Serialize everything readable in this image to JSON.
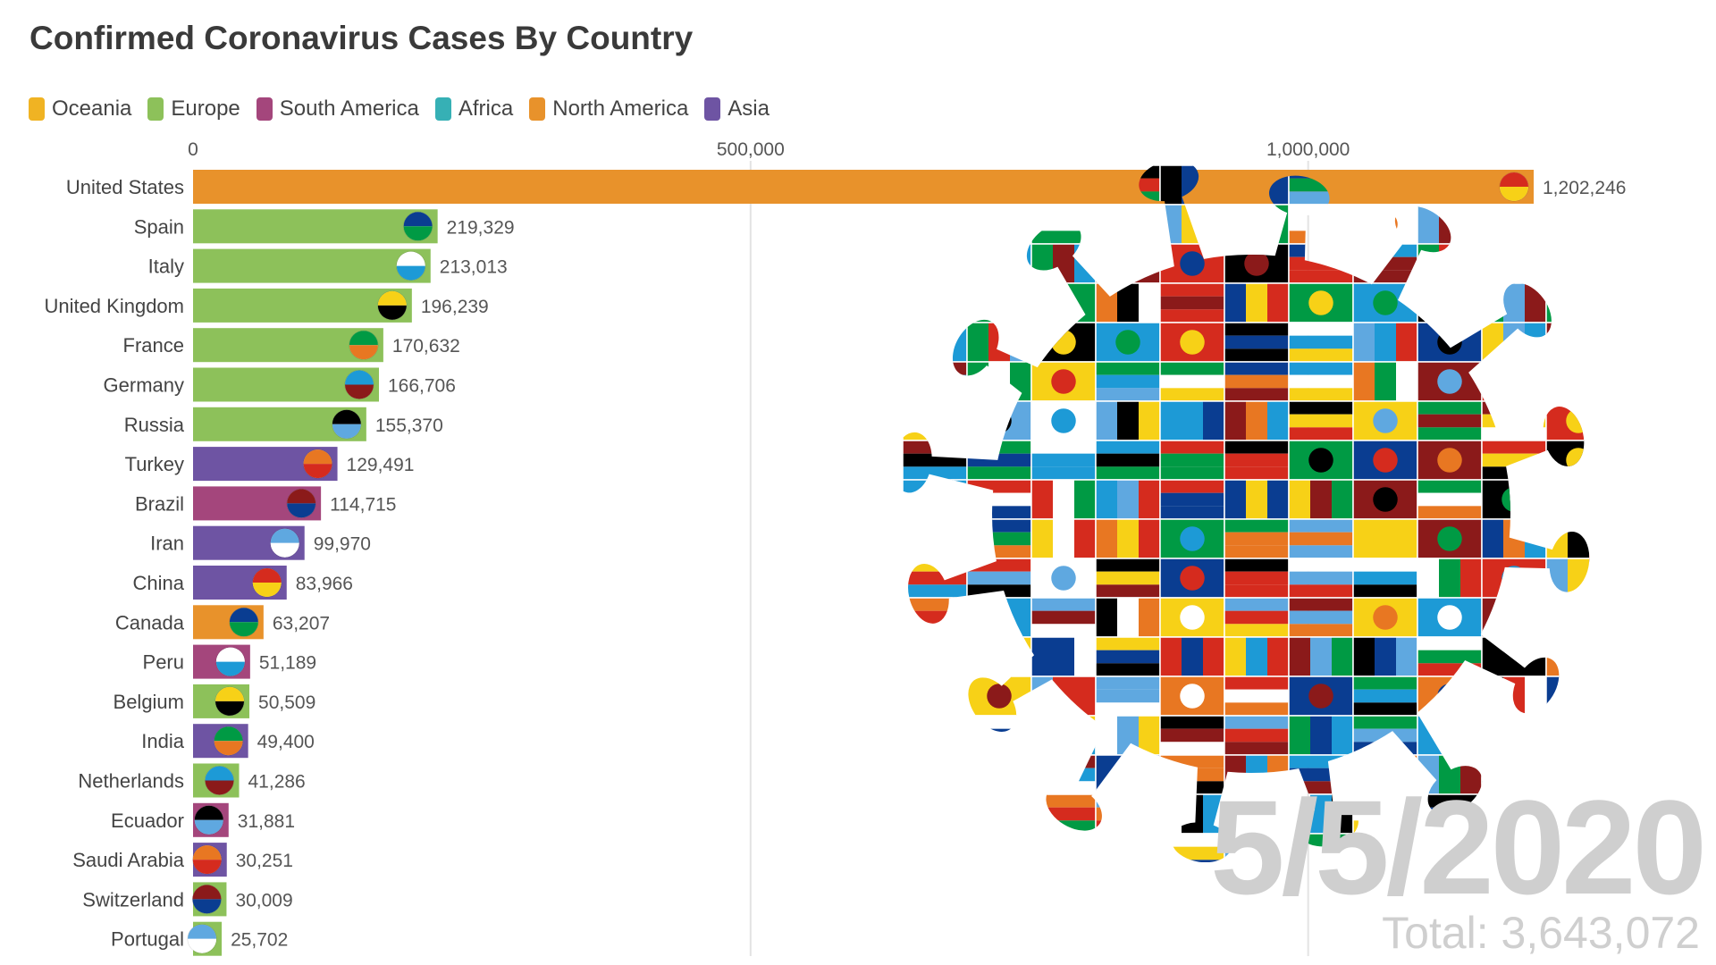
{
  "chart_data": {
    "type": "bar",
    "orientation": "horizontal",
    "title": "Confirmed Coronavirus Cases By Country",
    "legend": [
      {
        "name": "Oceania",
        "color": "#f0b323"
      },
      {
        "name": "Europe",
        "color": "#8dc15a"
      },
      {
        "name": "South America",
        "color": "#a4467c"
      },
      {
        "name": "Africa",
        "color": "#36b0b5"
      },
      {
        "name": "North America",
        "color": "#e8922b"
      },
      {
        "name": "Asia",
        "color": "#6e54a3"
      }
    ],
    "legend_position": "top-left",
    "x_ticks": [
      0,
      500000,
      1000000
    ],
    "x_tick_labels": [
      "0",
      "500,000",
      "1,000,000"
    ],
    "xlim": [
      0,
      1202246
    ],
    "grid": true,
    "bars": [
      {
        "country": "United States",
        "value": 1202246,
        "label": "1,202,246",
        "region": "North America"
      },
      {
        "country": "Spain",
        "value": 219329,
        "label": "219,329",
        "region": "Europe"
      },
      {
        "country": "Italy",
        "value": 213013,
        "label": "213,013",
        "region": "Europe"
      },
      {
        "country": "United Kingdom",
        "value": 196239,
        "label": "196,239",
        "region": "Europe"
      },
      {
        "country": "France",
        "value": 170632,
        "label": "170,632",
        "region": "Europe"
      },
      {
        "country": "Germany",
        "value": 166706,
        "label": "166,706",
        "region": "Europe"
      },
      {
        "country": "Russia",
        "value": 155370,
        "label": "155,370",
        "region": "Europe"
      },
      {
        "country": "Turkey",
        "value": 129491,
        "label": "129,491",
        "region": "Asia"
      },
      {
        "country": "Brazil",
        "value": 114715,
        "label": "114,715",
        "region": "South America"
      },
      {
        "country": "Iran",
        "value": 99970,
        "label": "99,970",
        "region": "Asia"
      },
      {
        "country": "China",
        "value": 83966,
        "label": "83,966",
        "region": "Asia"
      },
      {
        "country": "Canada",
        "value": 63207,
        "label": "63,207",
        "region": "North America"
      },
      {
        "country": "Peru",
        "value": 51189,
        "label": "51,189",
        "region": "South America"
      },
      {
        "country": "Belgium",
        "value": 50509,
        "label": "50,509",
        "region": "Europe"
      },
      {
        "country": "India",
        "value": 49400,
        "label": "49,400",
        "region": "Asia"
      },
      {
        "country": "Netherlands",
        "value": 41286,
        "label": "41,286",
        "region": "Europe"
      },
      {
        "country": "Ecuador",
        "value": 31881,
        "label": "31,881",
        "region": "South America"
      },
      {
        "country": "Saudi Arabia",
        "value": 30251,
        "label": "30,251",
        "region": "Asia"
      },
      {
        "country": "Switzerland",
        "value": 30009,
        "label": "30,009",
        "region": "Europe"
      },
      {
        "country": "Portugal",
        "value": 25702,
        "label": "25,702",
        "region": "Europe"
      }
    ],
    "date": "5/5/2020",
    "total": "Total: 3,643,072"
  },
  "virus_palette": [
    "#d52b1e",
    "#0a3d91",
    "#ffffff",
    "#f7d117",
    "#009a44",
    "#1d9ad6",
    "#000000",
    "#e87722",
    "#8b1a1a",
    "#5fa8e0"
  ]
}
